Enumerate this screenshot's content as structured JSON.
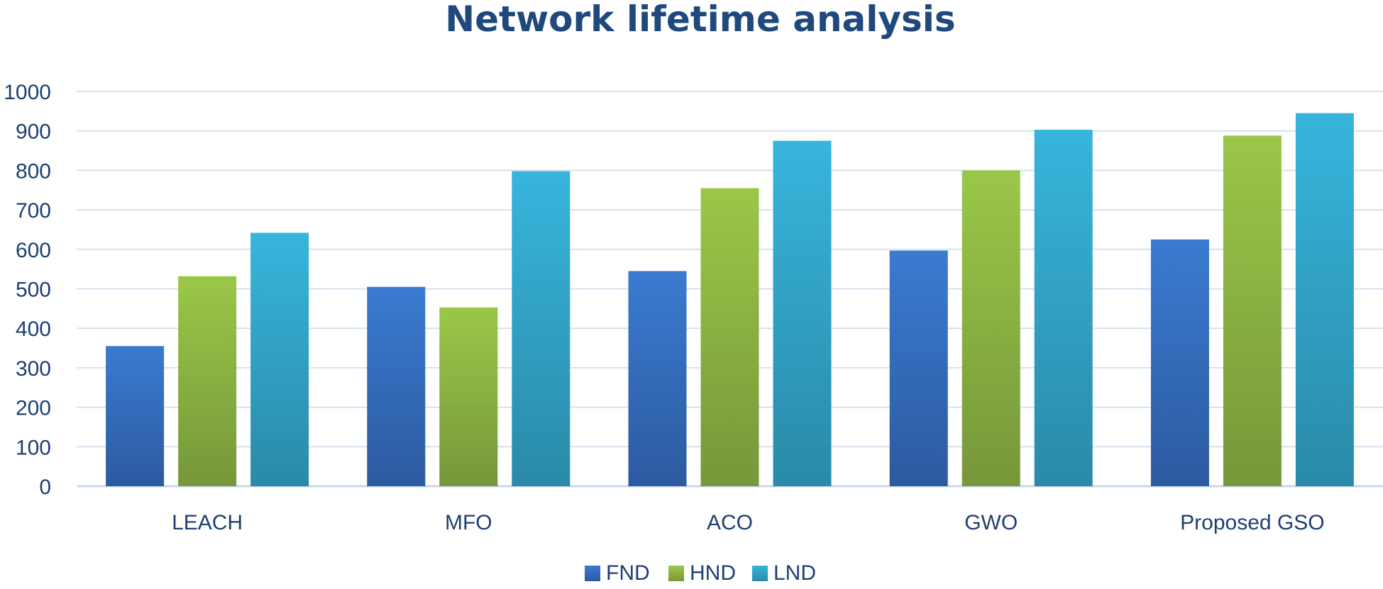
{
  "chart_data": {
    "type": "bar",
    "title": "Network lifetime analysis",
    "xlabel": "",
    "ylabel": "",
    "categories": [
      "LEACH",
      "MFO",
      "ACO",
      "GWO",
      "Proposed GSO"
    ],
    "series": [
      {
        "name": "FND",
        "values": [
          355,
          505,
          545,
          597,
          625
        ],
        "color": "#3a7bd0",
        "color_dark": "#2c5aa0"
      },
      {
        "name": "HND",
        "values": [
          532,
          453,
          755,
          800,
          888
        ],
        "color": "#9ac748",
        "color_dark": "#76973a"
      },
      {
        "name": "LND",
        "values": [
          642,
          798,
          875,
          903,
          945
        ],
        "color": "#37b5dc",
        "color_dark": "#2a8aa8"
      }
    ],
    "ylim": [
      0,
      1000
    ],
    "yticks": [
      0,
      100,
      200,
      300,
      400,
      500,
      600,
      700,
      800,
      900,
      1000
    ],
    "grid": true,
    "legend_position": "bottom"
  }
}
